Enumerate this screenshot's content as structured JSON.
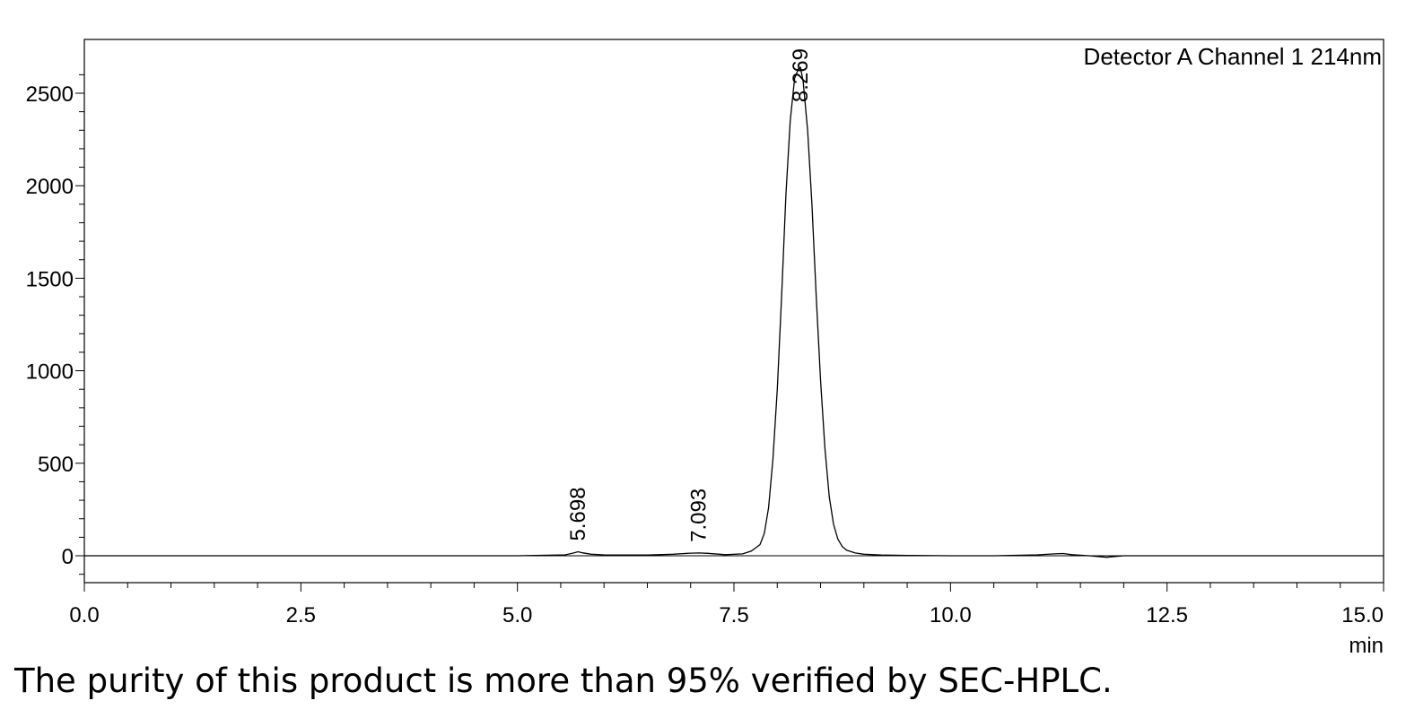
{
  "chart_data": {
    "type": "line",
    "title": "",
    "legend_text": "Detector A Channel 1 214nm",
    "legend_placement": "top-right",
    "xlabel": "min",
    "ylabel": "",
    "xlim": [
      0.0,
      15.0
    ],
    "ylim": [
      -150,
      2700
    ],
    "x_ticks": [
      "0.0",
      "2.5",
      "5.0",
      "7.5",
      "10.0",
      "12.5",
      "15.0"
    ],
    "y_ticks": [
      "0",
      "500",
      "1000",
      "1500",
      "2000",
      "2500"
    ],
    "grid": false,
    "peaks": [
      {
        "label": "5.698",
        "x": 5.698,
        "y": 22
      },
      {
        "label": "7.093",
        "x": 7.093,
        "y": 15
      },
      {
        "label": "8.269",
        "x": 8.269,
        "y": 2640
      }
    ],
    "series": [
      {
        "x": [
          0.0,
          5.0,
          5.55,
          5.65,
          5.7,
          5.75,
          5.85,
          6.0,
          6.5,
          6.8,
          7.0,
          7.1,
          7.2,
          7.4,
          7.6,
          7.7,
          7.8,
          7.85,
          7.9,
          7.95,
          8.0,
          8.05,
          8.1,
          8.15,
          8.2,
          8.25,
          8.269,
          8.3,
          8.35,
          8.4,
          8.45,
          8.5,
          8.55,
          8.6,
          8.65,
          8.7,
          8.75,
          8.8,
          8.9,
          9.0,
          9.2,
          9.5,
          10.0,
          10.5,
          11.0,
          11.2,
          11.3,
          11.4,
          11.6,
          11.8,
          12.0,
          15.0
        ],
        "y": [
          0,
          0,
          5,
          15,
          22,
          16,
          8,
          5,
          4,
          8,
          14,
          15,
          13,
          6,
          10,
          25,
          60,
          120,
          260,
          520,
          900,
          1400,
          1950,
          2350,
          2580,
          2640,
          2640,
          2560,
          2300,
          1900,
          1400,
          950,
          580,
          320,
          170,
          90,
          50,
          30,
          15,
          8,
          4,
          2,
          0,
          0,
          5,
          10,
          12,
          6,
          0,
          -8,
          0,
          0
        ]
      }
    ]
  },
  "caption": "The purity of this product is more than 95% verified by SEC-HPLC."
}
